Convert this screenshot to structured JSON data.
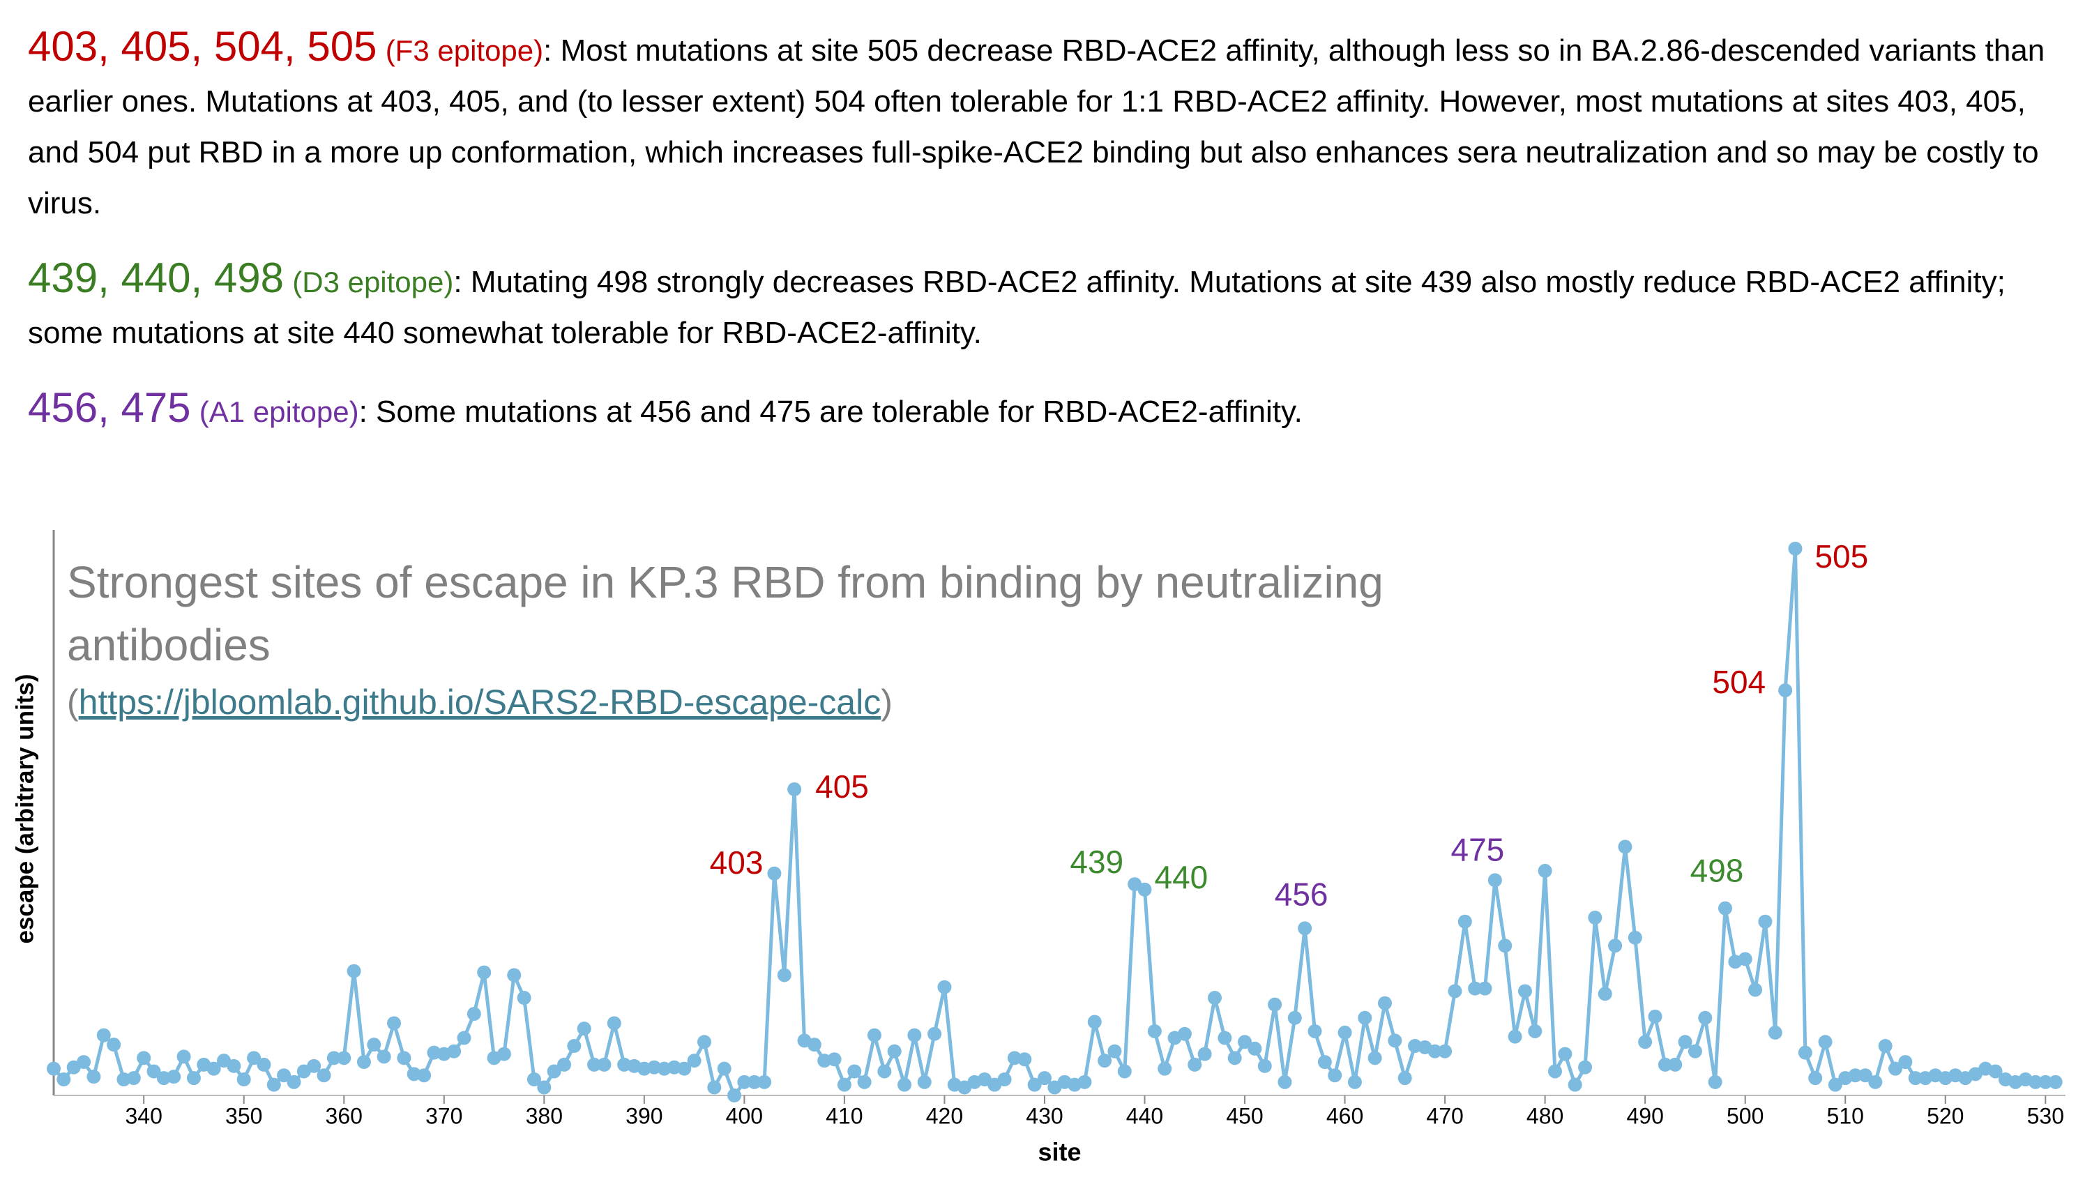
{
  "paragraphs": [
    {
      "sites": "403, 405, 504, 505",
      "epitope": "(F3 epitope)",
      "color": "#c00000",
      "text": ": Most mutations at site 505 decrease RBD-ACE2 affinity, although less so in BA.2.86-descended variants than earlier ones. Mutations at 403, 405, and (to lesser extent) 504 often tolerable for 1:1 RBD-ACE2 affinity. However, most mutations at sites 403, 405, and 504 put RBD in a more up conformation, which increases full-spike-ACE2 binding but also enhances sera neutralization and so may be costly to virus."
    },
    {
      "sites": "439, 440, 498",
      "epitope": "(D3 epitope)",
      "color": "#3a7d22",
      "text": ": Mutating 498 strongly decreases RBD-ACE2 affinity. Mutations at site 439 also mostly reduce RBD-ACE2 affinity; some mutations at site 440 somewhat tolerable for RBD-ACE2-affinity."
    },
    {
      "sites": "456, 475",
      "epitope": "(A1 epitope)",
      "color": "#7030a0",
      "text": ": Some mutations at 456 and 475 are tolerable for RBD-ACE2-affinity."
    }
  ],
  "chart_data": {
    "type": "line",
    "title": "Strongest sites of escape in KP.3 RBD from binding by neutralizing antibodies",
    "source": {
      "prefix": "(",
      "link": "https://jbloomlab.github.io/SARS2-RBD-escape-calc",
      "suffix": ")"
    },
    "xlabel": "site",
    "ylabel": "escape (arbitrary units)",
    "color": "#7dbadf",
    "xlim": [
      331,
      532
    ],
    "ylim": [
      0,
      4.23
    ],
    "xticks": [
      340,
      350,
      360,
      370,
      380,
      390,
      400,
      410,
      420,
      430,
      440,
      450,
      460,
      470,
      480,
      490,
      500,
      510,
      520,
      530
    ],
    "x": [
      331,
      332,
      333,
      334,
      335,
      336,
      337,
      338,
      339,
      340,
      341,
      342,
      343,
      344,
      345,
      346,
      347,
      348,
      349,
      350,
      351,
      352,
      353,
      354,
      355,
      356,
      357,
      358,
      359,
      360,
      361,
      362,
      363,
      364,
      365,
      366,
      367,
      368,
      369,
      370,
      371,
      372,
      373,
      374,
      375,
      376,
      377,
      378,
      379,
      380,
      381,
      382,
      383,
      384,
      385,
      386,
      387,
      388,
      389,
      390,
      391,
      392,
      393,
      394,
      395,
      396,
      397,
      398,
      399,
      400,
      401,
      402,
      403,
      404,
      405,
      406,
      407,
      408,
      409,
      410,
      411,
      412,
      413,
      414,
      415,
      416,
      417,
      418,
      419,
      420,
      421,
      422,
      423,
      424,
      425,
      426,
      427,
      428,
      429,
      430,
      431,
      432,
      433,
      434,
      435,
      436,
      437,
      438,
      439,
      440,
      441,
      442,
      443,
      444,
      445,
      446,
      447,
      448,
      449,
      450,
      451,
      452,
      453,
      454,
      455,
      456,
      457,
      458,
      459,
      460,
      461,
      462,
      463,
      464,
      465,
      466,
      467,
      468,
      469,
      470,
      471,
      472,
      473,
      474,
      475,
      476,
      477,
      478,
      479,
      480,
      481,
      482,
      483,
      484,
      485,
      486,
      487,
      488,
      489,
      490,
      491,
      492,
      493,
      494,
      495,
      496,
      497,
      498,
      499,
      500,
      501,
      502,
      503,
      504,
      505,
      506,
      507,
      508,
      509,
      510,
      511,
      512,
      513,
      514,
      515,
      516,
      517,
      518,
      519,
      520,
      521,
      522,
      523,
      524,
      525,
      526,
      527,
      528,
      529,
      530,
      531
    ],
    "values": [
      0.2,
      0.12,
      0.21,
      0.25,
      0.14,
      0.45,
      0.38,
      0.12,
      0.13,
      0.28,
      0.18,
      0.13,
      0.14,
      0.29,
      0.13,
      0.23,
      0.2,
      0.26,
      0.22,
      0.12,
      0.28,
      0.23,
      0.08,
      0.15,
      0.1,
      0.18,
      0.22,
      0.15,
      0.28,
      0.28,
      0.93,
      0.25,
      0.38,
      0.29,
      0.54,
      0.28,
      0.16,
      0.15,
      0.32,
      0.31,
      0.33,
      0.43,
      0.61,
      0.92,
      0.28,
      0.31,
      0.9,
      0.73,
      0.12,
      0.06,
      0.18,
      0.23,
      0.37,
      0.5,
      0.23,
      0.23,
      0.54,
      0.23,
      0.22,
      0.2,
      0.21,
      0.2,
      0.21,
      0.2,
      0.26,
      0.4,
      0.06,
      0.2,
      0,
      0.1,
      0.1,
      0.1,
      1.66,
      0.9,
      2.29,
      0.41,
      0.38,
      0.26,
      0.27,
      0.08,
      0.18,
      0.1,
      0.45,
      0.18,
      0.33,
      0.08,
      0.45,
      0.1,
      0.46,
      0.81,
      0.08,
      0.06,
      0.1,
      0.12,
      0.08,
      0.12,
      0.28,
      0.27,
      0.08,
      0.13,
      0.06,
      0.1,
      0.08,
      0.1,
      0.55,
      0.26,
      0.33,
      0.18,
      1.58,
      1.54,
      0.48,
      0.2,
      0.43,
      0.46,
      0.23,
      0.31,
      0.73,
      0.43,
      0.28,
      0.4,
      0.35,
      0.22,
      0.68,
      0.1,
      0.58,
      1.25,
      0.48,
      0.25,
      0.15,
      0.47,
      0.1,
      0.58,
      0.28,
      0.69,
      0.41,
      0.13,
      0.37,
      0.36,
      0.33,
      0.33,
      0.78,
      1.3,
      0.8,
      0.8,
      1.61,
      1.12,
      0.44,
      0.78,
      0.48,
      1.68,
      0.18,
      0.31,
      0.08,
      0.21,
      1.33,
      0.76,
      1.12,
      1.86,
      1.18,
      0.4,
      0.59,
      0.23,
      0.23,
      0.4,
      0.33,
      0.58,
      0.1,
      1.4,
      1.0,
      1.02,
      0.79,
      1.3,
      0.47,
      3.03,
      4.09,
      0.32,
      0.13,
      0.4,
      0.08,
      0.13,
      0.15,
      0.15,
      0.1,
      0.37,
      0.2,
      0.25,
      0.13,
      0.13,
      0.15,
      0.13,
      0.15,
      0.13,
      0.16,
      0.2,
      0.18,
      0.12,
      0.1,
      0.12,
      0.1,
      0.1,
      0.1
    ],
    "annotations": [
      {
        "text": "403",
        "color": "#c00000"
      },
      {
        "text": "405",
        "color": "#c00000"
      },
      {
        "text": "439",
        "color": "#3c8a2e"
      },
      {
        "text": "440",
        "color": "#3c8a2e"
      },
      {
        "text": "456",
        "color": "#7030a0"
      },
      {
        "text": "475",
        "color": "#7030a0"
      },
      {
        "text": "498",
        "color": "#3c8a2e"
      },
      {
        "text": "504",
        "color": "#c00000"
      },
      {
        "text": "505",
        "color": "#c00000"
      }
    ]
  }
}
